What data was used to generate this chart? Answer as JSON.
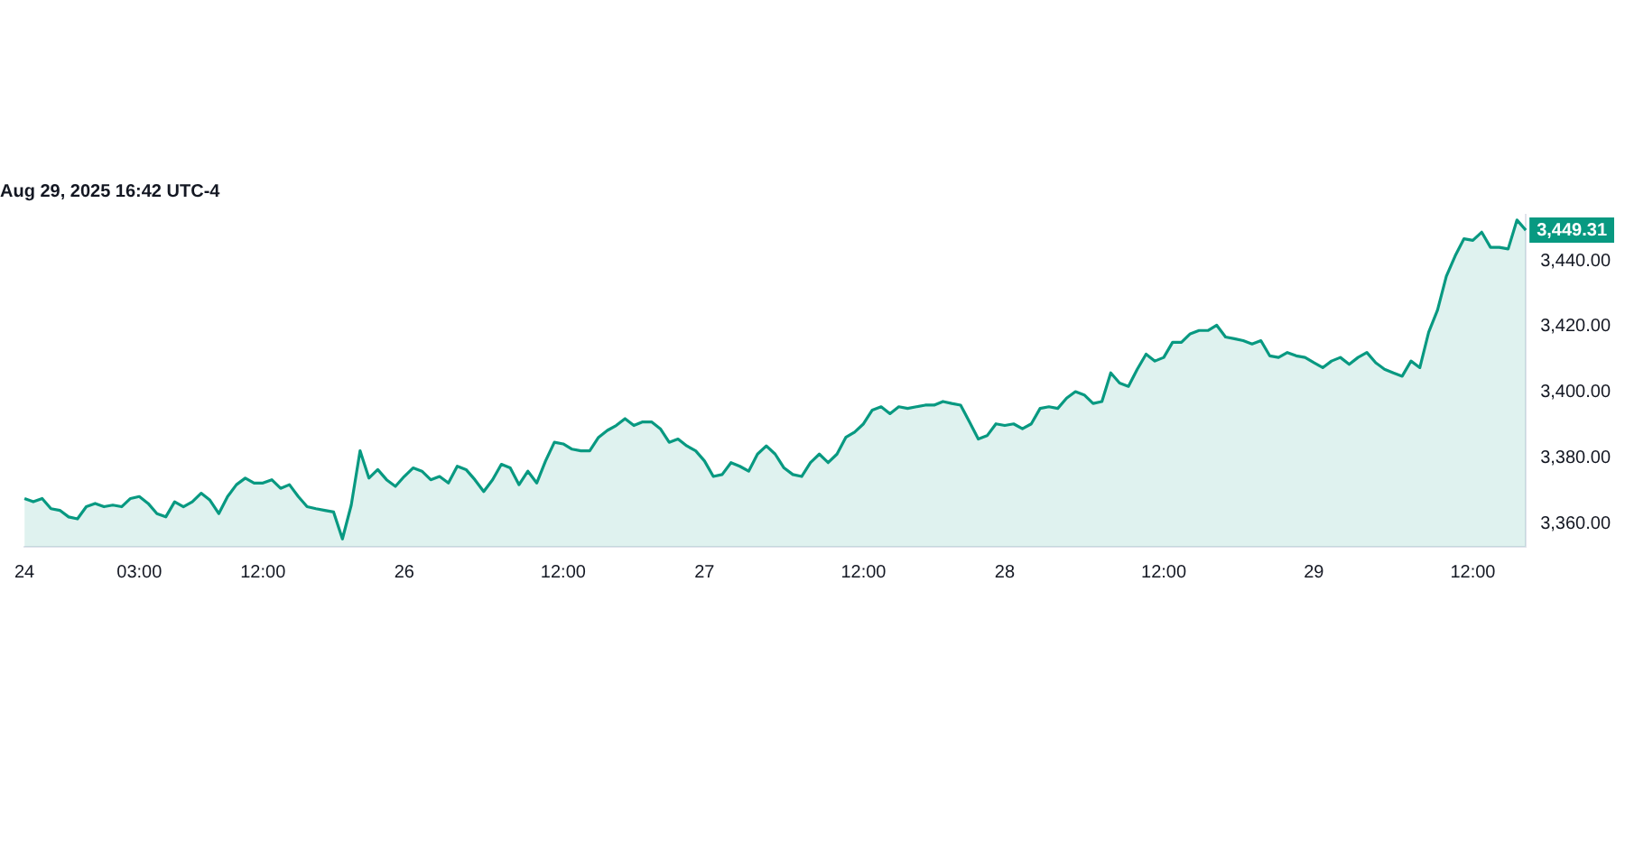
{
  "chart_data": {
    "type": "area",
    "title": "Aug 29, 2025 16:42 UTC-4",
    "categories": [
      "24",
      null,
      null,
      null,
      null,
      null,
      null,
      null,
      null,
      null,
      null,
      null,
      null,
      "03:00",
      null,
      null,
      null,
      null,
      null,
      null,
      null,
      null,
      null,
      null,
      null,
      null,
      null,
      "12:00",
      null,
      null,
      null,
      null,
      null,
      null,
      null,
      null,
      null,
      null,
      null,
      null,
      null,
      null,
      null,
      "26",
      null,
      null,
      null,
      null,
      null,
      null,
      null,
      null,
      null,
      null,
      null,
      null,
      null,
      null,
      null,
      null,
      null,
      "12:00",
      null,
      null,
      null,
      null,
      null,
      null,
      null,
      null,
      null,
      null,
      null,
      null,
      null,
      null,
      null,
      "27",
      null,
      null,
      null,
      null,
      null,
      null,
      null,
      null,
      null,
      null,
      null,
      null,
      null,
      null,
      null,
      null,
      null,
      "12:00",
      null,
      null,
      null,
      null,
      null,
      null,
      null,
      null,
      null,
      null,
      null,
      null,
      null,
      null,
      null,
      "28",
      null,
      null,
      null,
      null,
      null,
      null,
      null,
      null,
      null,
      null,
      null,
      null,
      null,
      null,
      null,
      null,
      null,
      "12:00",
      null,
      null,
      null,
      null,
      null,
      null,
      null,
      null,
      null,
      null,
      null,
      null,
      null,
      null,
      null,
      null,
      "29",
      null,
      null,
      null,
      null,
      null,
      null,
      null,
      null,
      null,
      null,
      null,
      null,
      null,
      null,
      null,
      null,
      null,
      "12:00",
      null,
      null,
      null,
      null,
      null,
      null
    ],
    "series": [
      {
        "color": "#089981",
        "values": [
          3367.7,
          3366.7,
          3367.7,
          3364.6,
          3364.1,
          3362.1,
          3361.5,
          3365.2,
          3366.2,
          3365.2,
          3365.7,
          3365.2,
          3367.7,
          3368.3,
          3366.2,
          3363.1,
          3362.1,
          3366.7,
          3365.2,
          3366.7,
          3369.3,
          3367.2,
          3363.1,
          3368.3,
          3371.9,
          3373.9,
          3372.4,
          3372.4,
          3373.4,
          3370.8,
          3371.9,
          3368.3,
          3365.2,
          3364.6,
          3364.1,
          3363.6,
          3355.4,
          3365.7,
          3382.2,
          3373.9,
          3376.5,
          3373.4,
          3371.4,
          3374.4,
          3377.0,
          3376.0,
          3373.4,
          3374.4,
          3372.4,
          3377.5,
          3376.5,
          3373.4,
          3369.8,
          3373.4,
          3378.1,
          3377.0,
          3371.9,
          3376.0,
          3372.4,
          3379.1,
          3384.8,
          3384.3,
          3382.7,
          3382.2,
          3382.2,
          3386.3,
          3388.4,
          3389.9,
          3392.0,
          3389.9,
          3391.0,
          3391.0,
          3388.9,
          3384.8,
          3385.8,
          3383.7,
          3382.2,
          3379.1,
          3374.4,
          3375.0,
          3378.6,
          3377.5,
          3376.0,
          3381.2,
          3383.7,
          3381.2,
          3377.0,
          3375.0,
          3374.4,
          3378.6,
          3381.2,
          3378.6,
          3381.2,
          3386.3,
          3387.9,
          3390.4,
          3394.6,
          3395.6,
          3393.5,
          3395.6,
          3395.1,
          3395.6,
          3396.1,
          3396.1,
          3397.2,
          3396.6,
          3396.1,
          3391.0,
          3385.8,
          3386.8,
          3390.4,
          3389.9,
          3390.4,
          3388.9,
          3390.4,
          3395.1,
          3395.6,
          3395.1,
          3398.2,
          3400.2,
          3399.2,
          3396.6,
          3397.2,
          3405.9,
          3402.8,
          3401.8,
          3407.0,
          3411.6,
          3409.5,
          3410.6,
          3415.2,
          3415.2,
          3417.8,
          3418.8,
          3418.8,
          3420.4,
          3416.8,
          3416.3,
          3415.7,
          3414.7,
          3415.7,
          3411.1,
          3410.6,
          3412.1,
          3411.1,
          3410.6,
          3409.0,
          3407.5,
          3409.5,
          3410.6,
          3408.5,
          3410.6,
          3412.1,
          3409.0,
          3407.0,
          3405.9,
          3404.9,
          3409.5,
          3407.5,
          3418.3,
          3425.0,
          3435.3,
          3441.5,
          3446.7,
          3446.2,
          3448.7,
          3444.1,
          3444.1,
          3443.6,
          3452.4,
          3449.31
        ],
        "value_labels": [
          null,
          null,
          null,
          null,
          null,
          null,
          null,
          null,
          null,
          null,
          null,
          null,
          null,
          null,
          null,
          null,
          null,
          null,
          null,
          null,
          null,
          null,
          null,
          null,
          null,
          null,
          null,
          null,
          null,
          null,
          null,
          null,
          null,
          null,
          null,
          null,
          null,
          null,
          null,
          null,
          null,
          null,
          null,
          null,
          null,
          null,
          null,
          null,
          null,
          null,
          null,
          null,
          null,
          null,
          null,
          null,
          null,
          null,
          null,
          null,
          null,
          null,
          null,
          null,
          null,
          null,
          null,
          null,
          null,
          null,
          null,
          null,
          null,
          null,
          null,
          null,
          null,
          null,
          null,
          null,
          null,
          null,
          null,
          null,
          null,
          null,
          null,
          null,
          null,
          null,
          null,
          null,
          null,
          null,
          null,
          null,
          null,
          null,
          null,
          null,
          null,
          null,
          null,
          null,
          null,
          null,
          null,
          null,
          null,
          null,
          null,
          null,
          null,
          null,
          null,
          null,
          null,
          null,
          null,
          null,
          null,
          null,
          null,
          null,
          null,
          null,
          null,
          null,
          null,
          null,
          null,
          null,
          null,
          null,
          null,
          null,
          null,
          null,
          null,
          null,
          null,
          null,
          null,
          null,
          null,
          null,
          null,
          null,
          null,
          null,
          null,
          null,
          null,
          null,
          null,
          null,
          null,
          null,
          null,
          null,
          null,
          null,
          null,
          null,
          null,
          null,
          null,
          null,
          null,
          null,
          "3,449.31"
        ]
      }
    ],
    "ylim": [
      3353,
      3454
    ],
    "yticks": [
      {
        "value": 3360,
        "label": "3,360.00"
      },
      {
        "value": 3380,
        "label": "3,380.00"
      },
      {
        "value": 3400,
        "label": "3,400.00"
      },
      {
        "value": 3420,
        "label": "3,420.00"
      },
      {
        "value": 3440,
        "label": "3,440.00"
      }
    ]
  }
}
